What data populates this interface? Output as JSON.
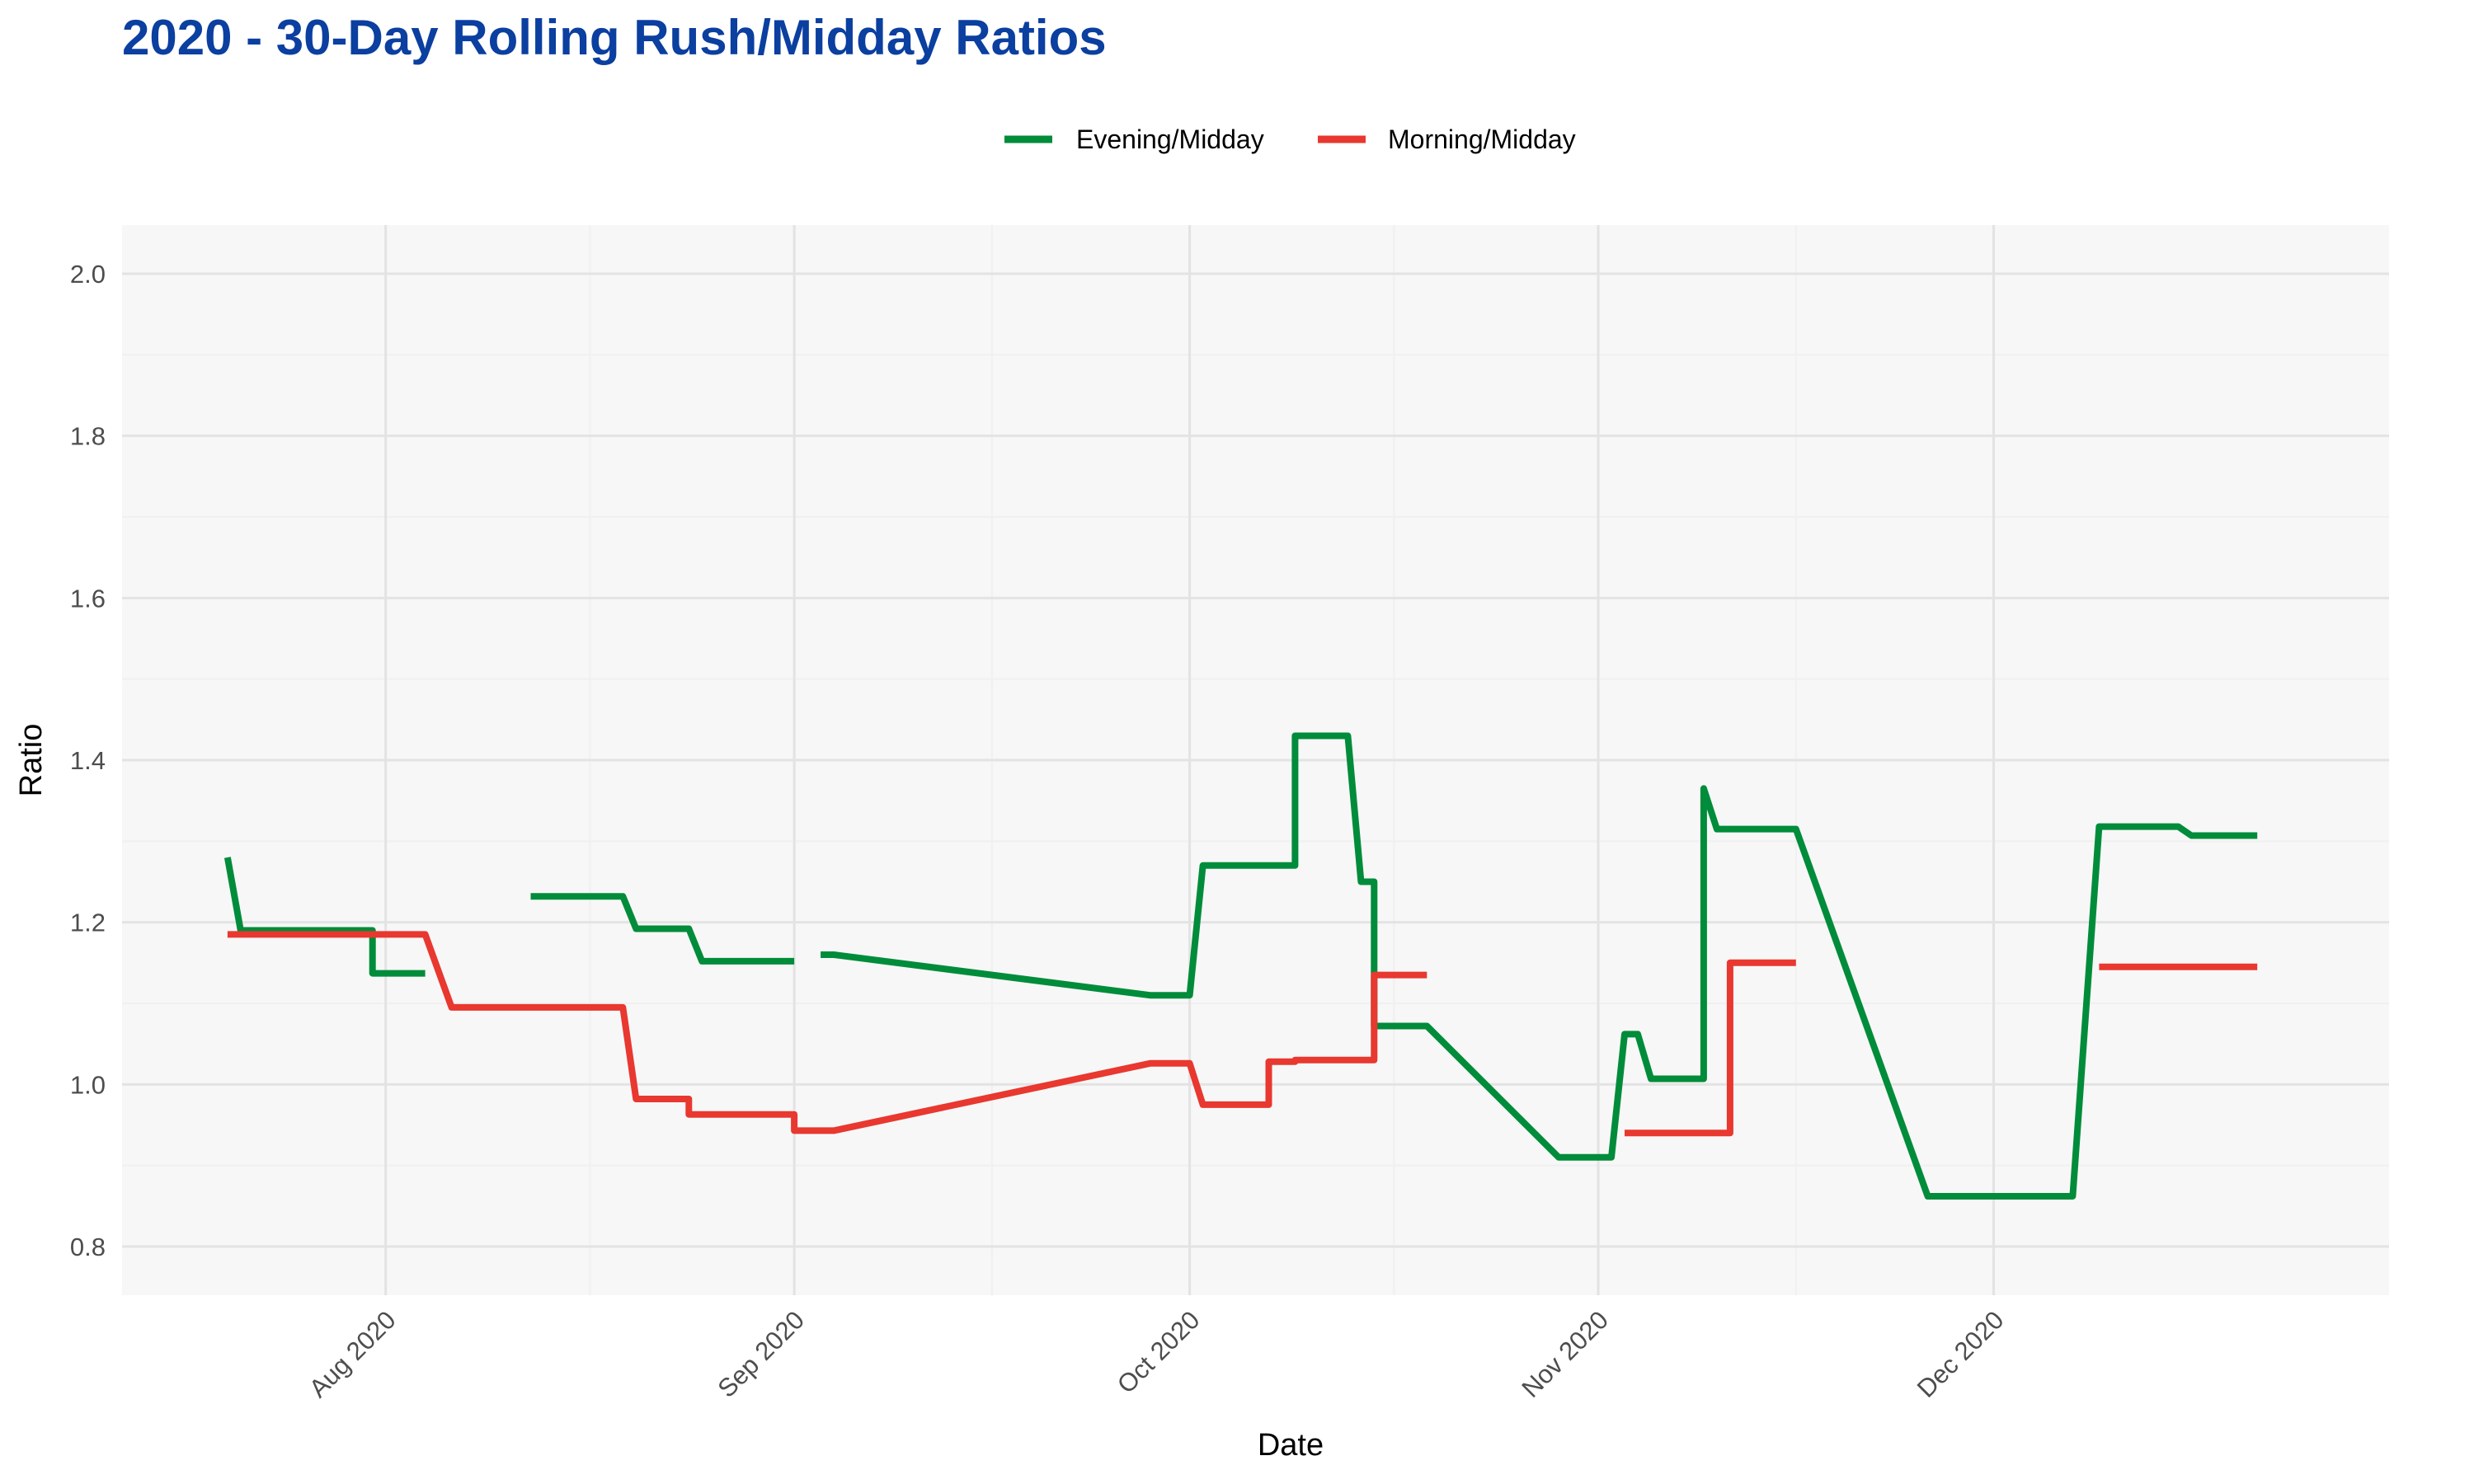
{
  "chart_data": {
    "type": "line",
    "title": "2020 - 30-Day Rolling Rush/Midday Ratios",
    "xlabel": "Date",
    "ylabel": "Ratio",
    "x_axis": {
      "type": "date",
      "range": [
        "2020-07-12",
        "2020-12-31"
      ],
      "ticks": [
        "2020-08-01",
        "2020-09-01",
        "2020-10-01",
        "2020-11-01",
        "2020-12-01"
      ],
      "tick_labels": [
        "Aug 2020",
        "Sep 2020",
        "Oct 2020",
        "Nov 2020",
        "Dec 2020"
      ]
    },
    "y_axis": {
      "range": [
        0.74,
        2.06
      ],
      "ticks": [
        0.8,
        1.0,
        1.2,
        1.4,
        1.6,
        1.8,
        2.0
      ],
      "tick_labels": [
        "0.8",
        "1.0",
        "1.2",
        "1.4",
        "1.6",
        "1.8",
        "2.0"
      ]
    },
    "grid": true,
    "legend": {
      "position": "top"
    },
    "background": "#f7f7f7",
    "series": [
      {
        "name": "Evening/Midday",
        "color": "#008C3A",
        "segments": [
          [
            [
              "2020-07-20",
              1.28
            ],
            [
              "2020-07-21",
              1.19
            ],
            [
              "2020-07-31",
              1.19
            ],
            [
              "2020-07-31",
              1.137
            ],
            [
              "2020-08-04",
              1.137
            ]
          ],
          [
            [
              "2020-08-12",
              1.232
            ],
            [
              "2020-08-19",
              1.232
            ],
            [
              "2020-08-20",
              1.192
            ],
            [
              "2020-08-24",
              1.192
            ],
            [
              "2020-08-25",
              1.152
            ],
            [
              "2020-09-01",
              1.152
            ]
          ],
          [
            [
              "2020-09-03",
              1.16
            ],
            [
              "2020-09-04",
              1.16
            ],
            [
              "2020-09-28",
              1.11
            ],
            [
              "2020-10-01",
              1.11
            ],
            [
              "2020-10-02",
              1.27
            ],
            [
              "2020-10-09",
              1.27
            ],
            [
              "2020-10-09",
              1.43
            ],
            [
              "2020-10-13",
              1.43
            ],
            [
              "2020-10-14",
              1.25
            ],
            [
              "2020-10-15",
              1.25
            ],
            [
              "2020-10-15",
              1.072
            ],
            [
              "2020-10-19",
              1.072
            ],
            [
              "2020-10-29",
              0.91
            ],
            [
              "2020-11-02",
              0.91
            ],
            [
              "2020-11-03",
              1.062
            ],
            [
              "2020-11-04",
              1.062
            ],
            [
              "2020-11-05",
              1.007
            ],
            [
              "2020-11-09",
              1.007
            ],
            [
              "2020-11-09",
              1.365
            ],
            [
              "2020-11-10",
              1.315
            ],
            [
              "2020-11-16",
              1.315
            ],
            [
              "2020-11-26",
              0.862
            ],
            [
              "2020-12-07",
              0.862
            ],
            [
              "2020-12-09",
              1.318
            ],
            [
              "2020-12-15",
              1.318
            ],
            [
              "2020-12-16",
              1.307
            ],
            [
              "2020-12-21",
              1.307
            ]
          ]
        ]
      },
      {
        "name": "Morning/Midday",
        "color": "#E8382F",
        "segments": [
          [
            [
              "2020-07-20",
              1.185
            ],
            [
              "2020-08-04",
              1.185
            ],
            [
              "2020-08-06",
              1.095
            ],
            [
              "2020-08-19",
              1.095
            ],
            [
              "2020-08-20",
              0.982
            ],
            [
              "2020-08-24",
              0.982
            ],
            [
              "2020-08-24",
              0.963
            ],
            [
              "2020-09-01",
              0.963
            ],
            [
              "2020-09-01",
              0.943
            ],
            [
              "2020-09-04",
              0.943
            ],
            [
              "2020-09-28",
              1.026
            ],
            [
              "2020-10-01",
              1.026
            ],
            [
              "2020-10-02",
              0.975
            ],
            [
              "2020-10-07",
              0.975
            ],
            [
              "2020-10-07",
              1.028
            ],
            [
              "2020-10-09",
              1.028
            ],
            [
              "2020-10-09",
              1.03
            ],
            [
              "2020-10-15",
              1.03
            ],
            [
              "2020-10-15",
              1.135
            ],
            [
              "2020-10-19",
              1.135
            ]
          ],
          [
            [
              "2020-11-03",
              0.94
            ],
            [
              "2020-11-11",
              0.94
            ],
            [
              "2020-11-11",
              1.15
            ],
            [
              "2020-11-16",
              1.15
            ]
          ],
          [
            [
              "2020-12-09",
              1.145
            ],
            [
              "2020-12-21",
              1.145
            ]
          ]
        ]
      }
    ]
  }
}
